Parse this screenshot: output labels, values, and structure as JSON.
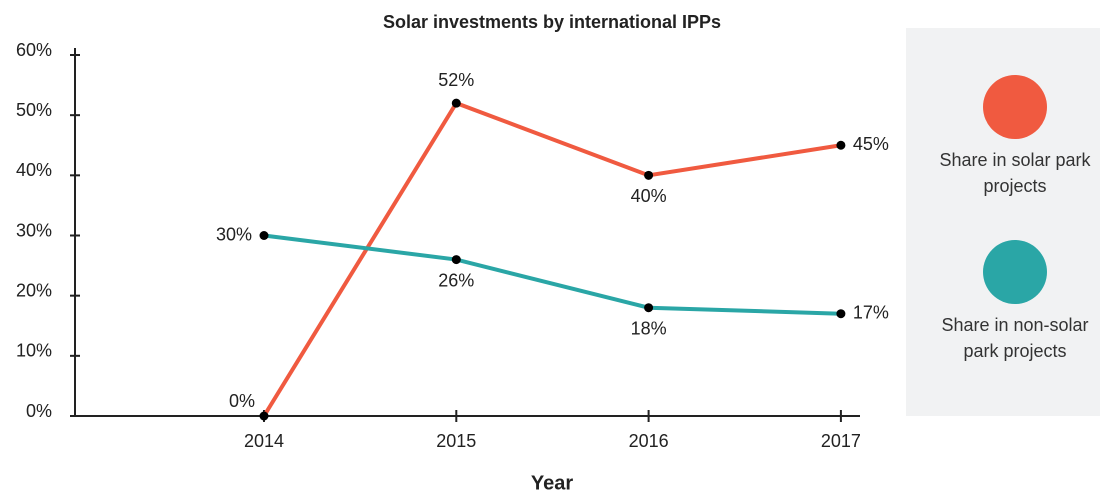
{
  "chart_data": {
    "type": "line",
    "title": "Solar investments by international IPPs",
    "x_label": "Year",
    "categories": [
      "2014",
      "2015",
      "2016",
      "2017"
    ],
    "series": [
      {
        "name": "Share in solar park projects",
        "color": "#f05a40",
        "values": [
          0,
          52,
          40,
          45
        ],
        "value_labels": [
          "0%",
          "52%",
          "40%",
          "45%"
        ]
      },
      {
        "name": "Share in non-solar park projects",
        "color": "#2aa6a6",
        "values": [
          30,
          26,
          18,
          17
        ],
        "value_labels": [
          "30%",
          "26%",
          "18%",
          "17%"
        ]
      }
    ],
    "ylim": [
      0,
      60
    ],
    "yticks": [
      {
        "value": 0,
        "label": "0%"
      },
      {
        "value": 10,
        "label": "10%"
      },
      {
        "value": 20,
        "label": "20%"
      },
      {
        "value": 30,
        "label": "30%"
      },
      {
        "value": 40,
        "label": "40%"
      },
      {
        "value": 50,
        "label": "50%"
      },
      {
        "value": 60,
        "label": "60%"
      }
    ],
    "legend": "right"
  }
}
